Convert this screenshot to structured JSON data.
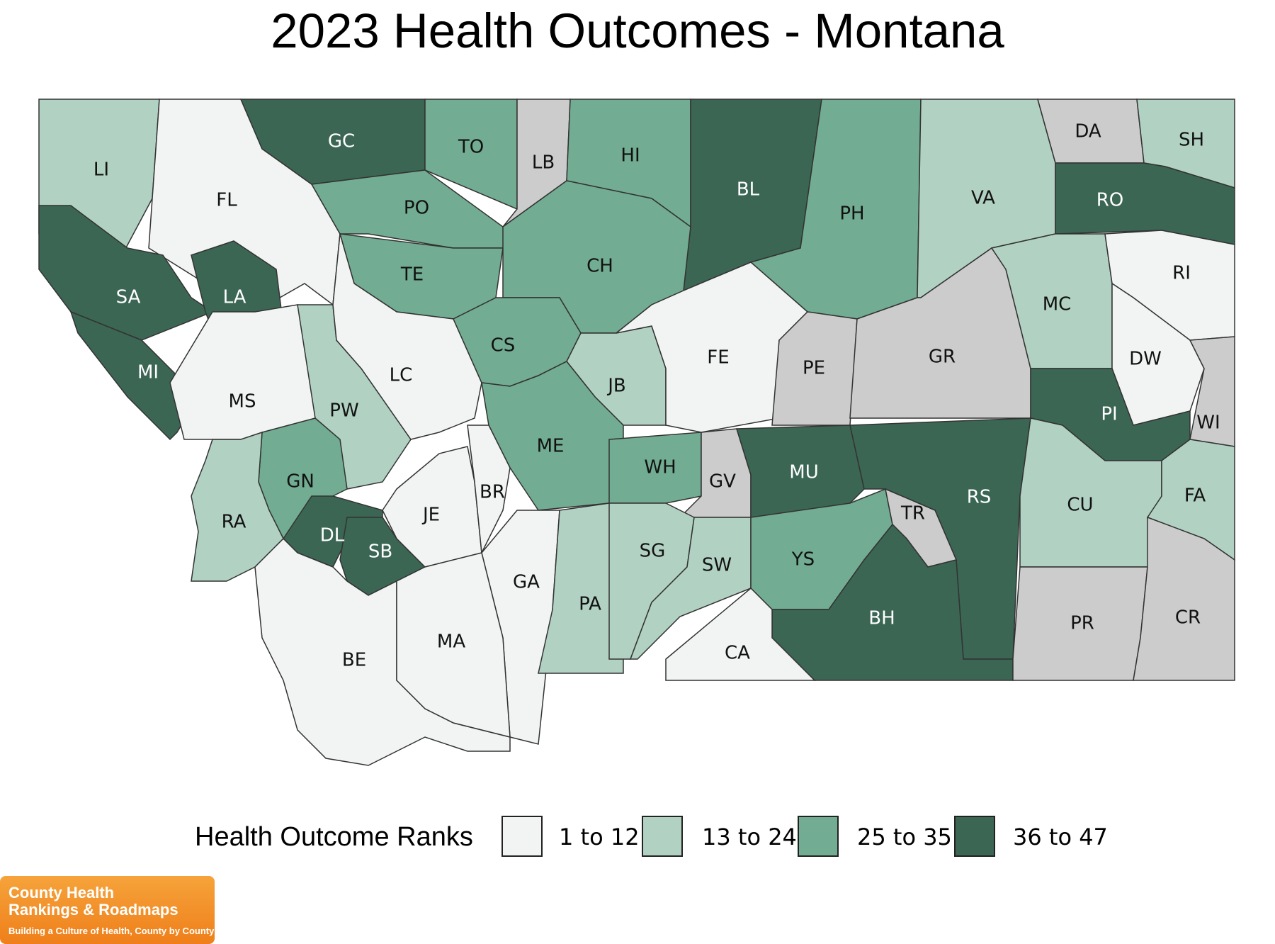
{
  "title": "2023 Health Outcomes - Montana",
  "legend": {
    "title": "Health Outcome Ranks",
    "bins": [
      {
        "label": "1 to 12",
        "color": "#f1f4f3"
      },
      {
        "label": "13 to 24",
        "color": "#b1d1c2"
      },
      {
        "label": "25 to 35",
        "color": "#72ac92"
      },
      {
        "label": "36 to 47",
        "color": "#3b6654"
      }
    ],
    "no_data_color": "#cccccc"
  },
  "counties": [
    {
      "abbr": "LI",
      "bin": 1
    },
    {
      "abbr": "FL",
      "bin": 0
    },
    {
      "abbr": "GC",
      "bin": 3
    },
    {
      "abbr": "TO",
      "bin": 2
    },
    {
      "abbr": "LB",
      "bin": -1
    },
    {
      "abbr": "HI",
      "bin": 2
    },
    {
      "abbr": "BL",
      "bin": 3
    },
    {
      "abbr": "PH",
      "bin": 2
    },
    {
      "abbr": "VA",
      "bin": 1
    },
    {
      "abbr": "DA",
      "bin": -1
    },
    {
      "abbr": "SH",
      "bin": 1
    },
    {
      "abbr": "RO",
      "bin": 3
    },
    {
      "abbr": "PO",
      "bin": 2
    },
    {
      "abbr": "TE",
      "bin": 2
    },
    {
      "abbr": "CH",
      "bin": 2
    },
    {
      "abbr": "SA",
      "bin": 3
    },
    {
      "abbr": "LA",
      "bin": 3
    },
    {
      "abbr": "MI",
      "bin": 3
    },
    {
      "abbr": "MS",
      "bin": 0
    },
    {
      "abbr": "PW",
      "bin": 1
    },
    {
      "abbr": "LC",
      "bin": 0
    },
    {
      "abbr": "CS",
      "bin": 2
    },
    {
      "abbr": "JB",
      "bin": 1
    },
    {
      "abbr": "FE",
      "bin": 0
    },
    {
      "abbr": "PE",
      "bin": -1
    },
    {
      "abbr": "GR",
      "bin": -1
    },
    {
      "abbr": "MC",
      "bin": 1
    },
    {
      "abbr": "RI",
      "bin": 0
    },
    {
      "abbr": "DW",
      "bin": 0
    },
    {
      "abbr": "WI",
      "bin": -1
    },
    {
      "abbr": "PI",
      "bin": 3
    },
    {
      "abbr": "ME",
      "bin": 2
    },
    {
      "abbr": "WH",
      "bin": 2
    },
    {
      "abbr": "GV",
      "bin": -1
    },
    {
      "abbr": "MU",
      "bin": 3
    },
    {
      "abbr": "RS",
      "bin": 3
    },
    {
      "abbr": "CU",
      "bin": 1
    },
    {
      "abbr": "FA",
      "bin": 1
    },
    {
      "abbr": "GN",
      "bin": 2
    },
    {
      "abbr": "RA",
      "bin": 1
    },
    {
      "abbr": "DL",
      "bin": 3
    },
    {
      "abbr": "SB",
      "bin": 3
    },
    {
      "abbr": "JE",
      "bin": 0
    },
    {
      "abbr": "BR",
      "bin": 0
    },
    {
      "abbr": "GA",
      "bin": 0
    },
    {
      "abbr": "PA",
      "bin": 1
    },
    {
      "abbr": "SG",
      "bin": 1
    },
    {
      "abbr": "SW",
      "bin": 1
    },
    {
      "abbr": "YS",
      "bin": 2
    },
    {
      "abbr": "TR",
      "bin": -1
    },
    {
      "abbr": "BH",
      "bin": 3
    },
    {
      "abbr": "CA",
      "bin": 0
    },
    {
      "abbr": "PR",
      "bin": -1
    },
    {
      "abbr": "CR",
      "bin": -1
    },
    {
      "abbr": "BE",
      "bin": 0
    },
    {
      "abbr": "MA",
      "bin": 0
    }
  ],
  "logo": {
    "line1": "County Health",
    "line2": "Rankings & Roadmaps",
    "tagline": "Building a Culture of Health, County by County"
  }
}
